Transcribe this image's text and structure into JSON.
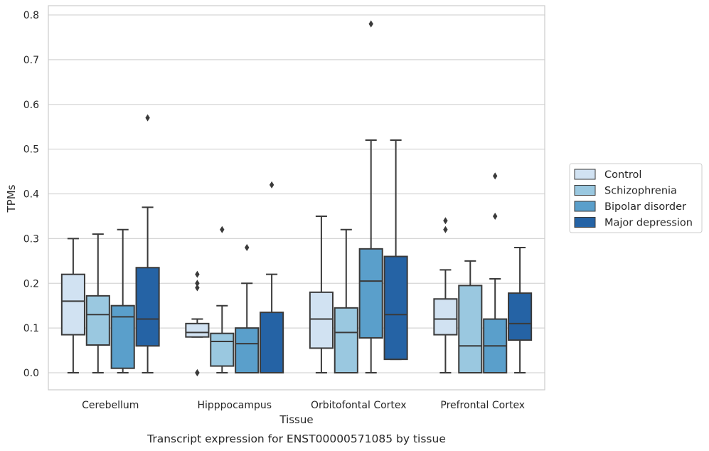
{
  "chart_data": {
    "type": "box",
    "xlabel": "Tissue",
    "ylabel": "TPMs",
    "caption": "Transcript expression for ENST00000571085 by tissue",
    "ylim": [
      -0.04,
      0.82
    ],
    "yticks": [
      "0.0",
      "0.1",
      "0.2",
      "0.3",
      "0.4",
      "0.5",
      "0.6",
      "0.7",
      "0.8"
    ],
    "grid": true,
    "legend_position": "right",
    "categories": [
      "Cerebellum",
      "Hipppocampus",
      "Orbitofontal Cortex",
      "Prefrontal Cortex"
    ],
    "series": [
      {
        "name": "Control",
        "color": "#d1e2f2",
        "boxes": [
          {
            "whisker_low": 0.0,
            "q1": 0.085,
            "median": 0.16,
            "q3": 0.22,
            "whisker_high": 0.3,
            "outliers": []
          },
          {
            "whisker_low": 0.08,
            "q1": 0.08,
            "median": 0.09,
            "q3": 0.11,
            "whisker_high": 0.12,
            "outliers": [
              0.0,
              0.0,
              0.19,
              0.2,
              0.22
            ]
          },
          {
            "whisker_low": 0.0,
            "q1": 0.055,
            "median": 0.12,
            "q3": 0.18,
            "whisker_high": 0.35,
            "outliers": []
          },
          {
            "whisker_low": 0.0,
            "q1": 0.085,
            "median": 0.12,
            "q3": 0.165,
            "whisker_high": 0.23,
            "outliers": [
              0.32,
              0.34
            ]
          }
        ]
      },
      {
        "name": "Schizophrenia",
        "color": "#9ac8e0",
        "boxes": [
          {
            "whisker_low": 0.0,
            "q1": 0.062,
            "median": 0.13,
            "q3": 0.172,
            "whisker_high": 0.31,
            "outliers": []
          },
          {
            "whisker_low": 0.0,
            "q1": 0.015,
            "median": 0.07,
            "q3": 0.088,
            "whisker_high": 0.15,
            "outliers": [
              0.32
            ]
          },
          {
            "whisker_low": 0.0,
            "q1": 0.0,
            "median": 0.09,
            "q3": 0.145,
            "whisker_high": 0.32,
            "outliers": []
          },
          {
            "whisker_low": 0.0,
            "q1": 0.0,
            "median": 0.06,
            "q3": 0.195,
            "whisker_high": 0.25,
            "outliers": []
          }
        ]
      },
      {
        "name": "Bipolar disorder",
        "color": "#5a9fcb",
        "boxes": [
          {
            "whisker_low": 0.0,
            "q1": 0.01,
            "median": 0.125,
            "q3": 0.15,
            "whisker_high": 0.32,
            "outliers": []
          },
          {
            "whisker_low": 0.0,
            "q1": 0.0,
            "median": 0.065,
            "q3": 0.1,
            "whisker_high": 0.2,
            "outliers": [
              0.28
            ]
          },
          {
            "whisker_low": 0.0,
            "q1": 0.078,
            "median": 0.205,
            "q3": 0.277,
            "whisker_high": 0.52,
            "outliers": [
              0.78
            ]
          },
          {
            "whisker_low": 0.0,
            "q1": 0.0,
            "median": 0.06,
            "q3": 0.12,
            "whisker_high": 0.21,
            "outliers": [
              0.35,
              0.44
            ]
          }
        ]
      },
      {
        "name": "Major depression",
        "color": "#2563a5",
        "boxes": [
          {
            "whisker_low": 0.0,
            "q1": 0.06,
            "median": 0.12,
            "q3": 0.235,
            "whisker_high": 0.37,
            "outliers": [
              0.57
            ]
          },
          {
            "whisker_low": 0.0,
            "q1": 0.0,
            "median": 0.0,
            "q3": 0.135,
            "whisker_high": 0.22,
            "outliers": [
              0.42
            ]
          },
          {
            "whisker_low": 0.03,
            "q1": 0.03,
            "median": 0.13,
            "q3": 0.26,
            "whisker_high": 0.52,
            "outliers": []
          },
          {
            "whisker_low": 0.0,
            "q1": 0.073,
            "median": 0.11,
            "q3": 0.178,
            "whisker_high": 0.28,
            "outliers": []
          }
        ]
      }
    ]
  }
}
